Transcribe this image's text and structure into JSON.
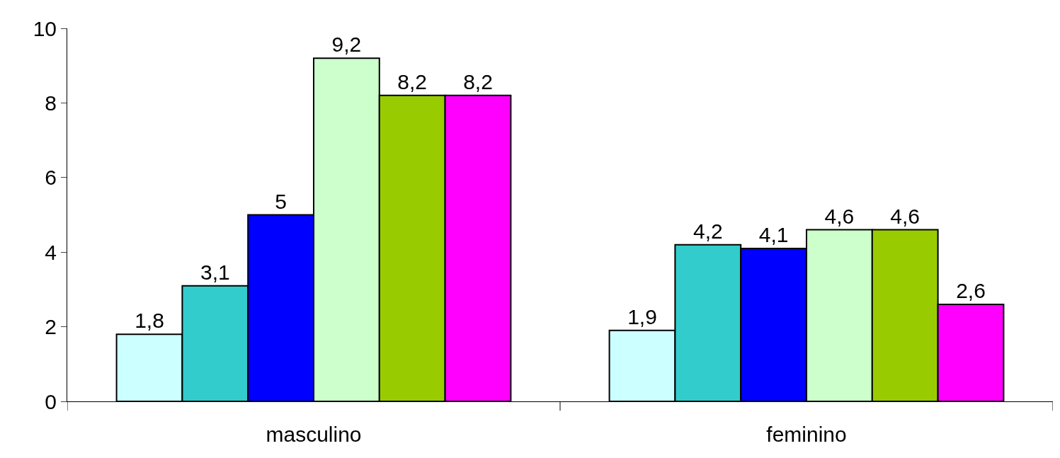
{
  "chart_data": {
    "type": "bar",
    "categories": [
      "masculino",
      "feminino"
    ],
    "series": [
      {
        "color": "#ccffff",
        "values": [
          1.8,
          1.9
        ],
        "value_labels": [
          "1,8",
          "1,9"
        ]
      },
      {
        "color": "#33cccc",
        "values": [
          3.1,
          4.2
        ],
        "value_labels": [
          "3,1",
          "4,2"
        ]
      },
      {
        "color": "#0000ff",
        "values": [
          5,
          4.1
        ],
        "value_labels": [
          "5",
          "4,1"
        ]
      },
      {
        "color": "#ccffcc",
        "values": [
          9.2,
          4.6
        ],
        "value_labels": [
          "9,2",
          "4,6"
        ]
      },
      {
        "color": "#99cc00",
        "values": [
          8.2,
          4.6
        ],
        "value_labels": [
          "8,2",
          "4,6"
        ]
      },
      {
        "color": "#ff00ff",
        "values": [
          8.2,
          2.6
        ],
        "value_labels": [
          "8,2",
          "2,6"
        ]
      }
    ],
    "ylim": [
      0,
      10
    ],
    "yticks": [
      0,
      2,
      4,
      6,
      8,
      10
    ]
  }
}
